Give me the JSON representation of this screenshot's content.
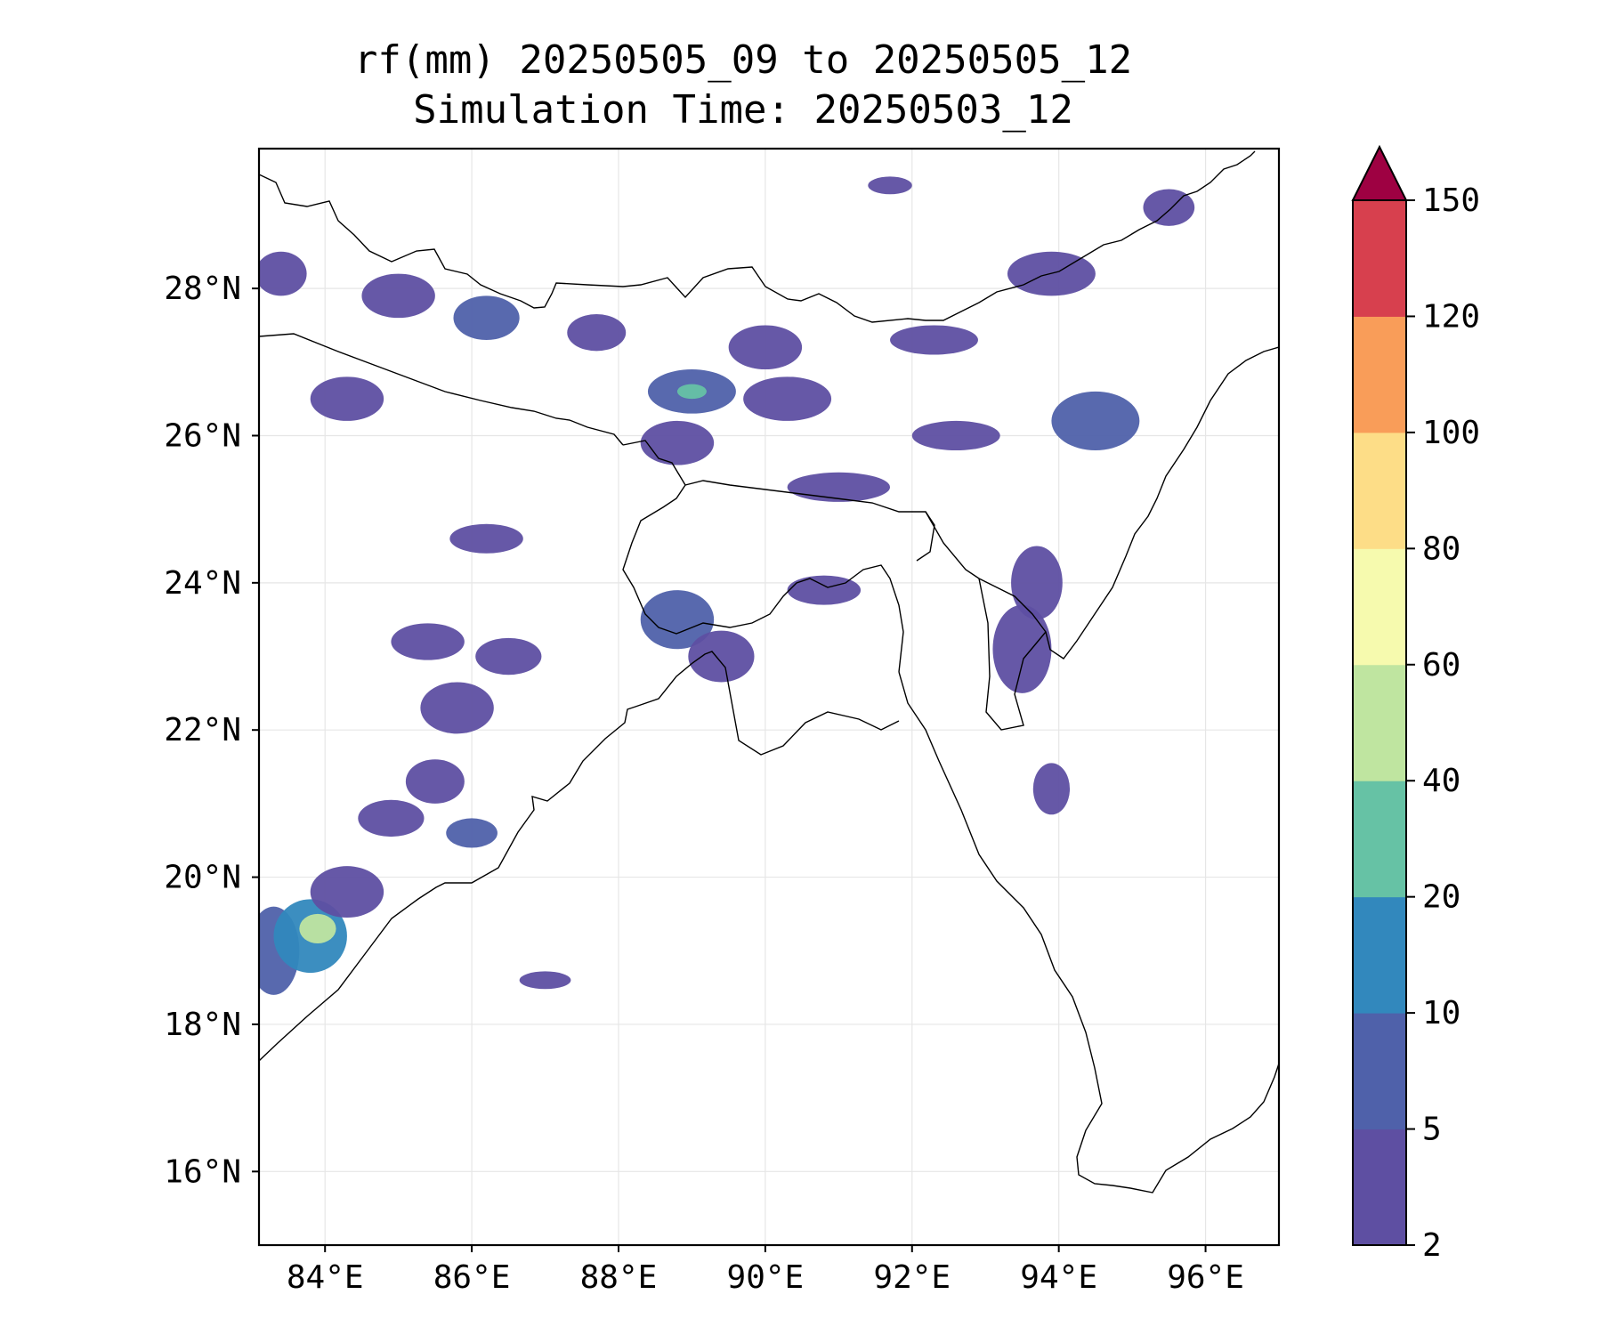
{
  "title": {
    "line1": "rf(mm) 20250505_09 to 20250505_12",
    "line2": "Simulation Time: 20250503_12"
  },
  "map": {
    "lon_range": [
      83.1,
      97.0
    ],
    "lat_range": [
      15.0,
      29.9
    ],
    "lon_ticks": [
      {
        "value": 84,
        "label": "84°E"
      },
      {
        "value": 86,
        "label": "86°E"
      },
      {
        "value": 88,
        "label": "88°E"
      },
      {
        "value": 90,
        "label": "90°E"
      },
      {
        "value": 92,
        "label": "92°E"
      },
      {
        "value": 94,
        "label": "94°E"
      },
      {
        "value": 96,
        "label": "96°E"
      }
    ],
    "lat_ticks": [
      {
        "value": 16,
        "label": "16°N"
      },
      {
        "value": 18,
        "label": "18°N"
      },
      {
        "value": 20,
        "label": "20°N"
      },
      {
        "value": 22,
        "label": "22°N"
      },
      {
        "value": 24,
        "label": "24°N"
      },
      {
        "value": 26,
        "label": "26°N"
      },
      {
        "value": 28,
        "label": "28°N"
      }
    ],
    "gridlines": true
  },
  "colorbar": {
    "levels": [
      {
        "value": 2,
        "label": "2"
      },
      {
        "value": 5,
        "label": "5"
      },
      {
        "value": 10,
        "label": "10"
      },
      {
        "value": 20,
        "label": "20"
      },
      {
        "value": 40,
        "label": "40"
      },
      {
        "value": 60,
        "label": "60"
      },
      {
        "value": 80,
        "label": "80"
      },
      {
        "value": 100,
        "label": "100"
      },
      {
        "value": 120,
        "label": "120"
      },
      {
        "value": 150,
        "label": "150"
      }
    ],
    "colors": [
      "#5e4fa2",
      "#4f61aa",
      "#3288bd",
      "#66c2a5",
      "#bfe5a0",
      "#f6faae",
      "#fddd87",
      "#f99d59",
      "#d7404e"
    ],
    "extend_color": "#9e0142"
  },
  "rain_patches": [
    {
      "lon": 83.3,
      "lat": 19.0,
      "rx": 0.35,
      "ry": 0.6,
      "level": 1
    },
    {
      "lon": 83.8,
      "lat": 19.2,
      "rx": 0.5,
      "ry": 0.5,
      "level": 2
    },
    {
      "lon": 83.9,
      "lat": 19.3,
      "rx": 0.25,
      "ry": 0.2,
      "level": 4
    },
    {
      "lon": 84.3,
      "lat": 19.8,
      "rx": 0.5,
      "ry": 0.35,
      "level": 0
    },
    {
      "lon": 84.9,
      "lat": 20.8,
      "rx": 0.45,
      "ry": 0.25,
      "level": 0
    },
    {
      "lon": 85.5,
      "lat": 21.3,
      "rx": 0.4,
      "ry": 0.3,
      "level": 0
    },
    {
      "lon": 85.8,
      "lat": 22.3,
      "rx": 0.5,
      "ry": 0.35,
      "level": 0
    },
    {
      "lon": 85.4,
      "lat": 23.2,
      "rx": 0.5,
      "ry": 0.25,
      "level": 0
    },
    {
      "lon": 86.5,
      "lat": 23.0,
      "rx": 0.45,
      "ry": 0.25,
      "level": 0
    },
    {
      "lon": 86.2,
      "lat": 24.6,
      "rx": 0.5,
      "ry": 0.2,
      "level": 0
    },
    {
      "lon": 84.3,
      "lat": 26.5,
      "rx": 0.5,
      "ry": 0.3,
      "level": 0
    },
    {
      "lon": 83.4,
      "lat": 28.2,
      "rx": 0.35,
      "ry": 0.3,
      "level": 0
    },
    {
      "lon": 85.0,
      "lat": 27.9,
      "rx": 0.5,
      "ry": 0.3,
      "level": 0
    },
    {
      "lon": 86.2,
      "lat": 27.6,
      "rx": 0.45,
      "ry": 0.3,
      "level": 1
    },
    {
      "lon": 87.7,
      "lat": 27.4,
      "rx": 0.4,
      "ry": 0.25,
      "level": 0
    },
    {
      "lon": 89.0,
      "lat": 26.6,
      "rx": 0.6,
      "ry": 0.3,
      "level": 1
    },
    {
      "lon": 89.0,
      "lat": 26.6,
      "rx": 0.2,
      "ry": 0.1,
      "level": 3
    },
    {
      "lon": 90.3,
      "lat": 26.5,
      "rx": 0.6,
      "ry": 0.3,
      "level": 0
    },
    {
      "lon": 88.8,
      "lat": 25.9,
      "rx": 0.5,
      "ry": 0.3,
      "level": 0
    },
    {
      "lon": 90.0,
      "lat": 27.2,
      "rx": 0.5,
      "ry": 0.3,
      "level": 0
    },
    {
      "lon": 91.0,
      "lat": 25.3,
      "rx": 0.7,
      "ry": 0.2,
      "level": 0
    },
    {
      "lon": 92.6,
      "lat": 26.0,
      "rx": 0.6,
      "ry": 0.2,
      "level": 0
    },
    {
      "lon": 92.3,
      "lat": 27.3,
      "rx": 0.6,
      "ry": 0.2,
      "level": 0
    },
    {
      "lon": 93.9,
      "lat": 28.2,
      "rx": 0.6,
      "ry": 0.3,
      "level": 0
    },
    {
      "lon": 95.5,
      "lat": 29.1,
      "rx": 0.35,
      "ry": 0.25,
      "level": 0
    },
    {
      "lon": 94.5,
      "lat": 26.2,
      "rx": 0.6,
      "ry": 0.4,
      "level": 1
    },
    {
      "lon": 93.7,
      "lat": 24.0,
      "rx": 0.35,
      "ry": 0.5,
      "level": 0
    },
    {
      "lon": 93.5,
      "lat": 23.1,
      "rx": 0.4,
      "ry": 0.6,
      "level": 0
    },
    {
      "lon": 93.9,
      "lat": 21.2,
      "rx": 0.25,
      "ry": 0.35,
      "level": 0
    },
    {
      "lon": 88.8,
      "lat": 23.5,
      "rx": 0.5,
      "ry": 0.4,
      "level": 1
    },
    {
      "lon": 89.4,
      "lat": 23.0,
      "rx": 0.45,
      "ry": 0.35,
      "level": 0
    },
    {
      "lon": 90.8,
      "lat": 23.9,
      "rx": 0.5,
      "ry": 0.2,
      "level": 0
    },
    {
      "lon": 86.0,
      "lat": 20.6,
      "rx": 0.35,
      "ry": 0.2,
      "level": 1
    },
    {
      "lon": 87.0,
      "lat": 18.6,
      "rx": 0.35,
      "ry": 0.12,
      "level": 0
    },
    {
      "lon": 91.7,
      "lat": 29.4,
      "rx": 0.3,
      "ry": 0.12,
      "level": 0
    }
  ]
}
